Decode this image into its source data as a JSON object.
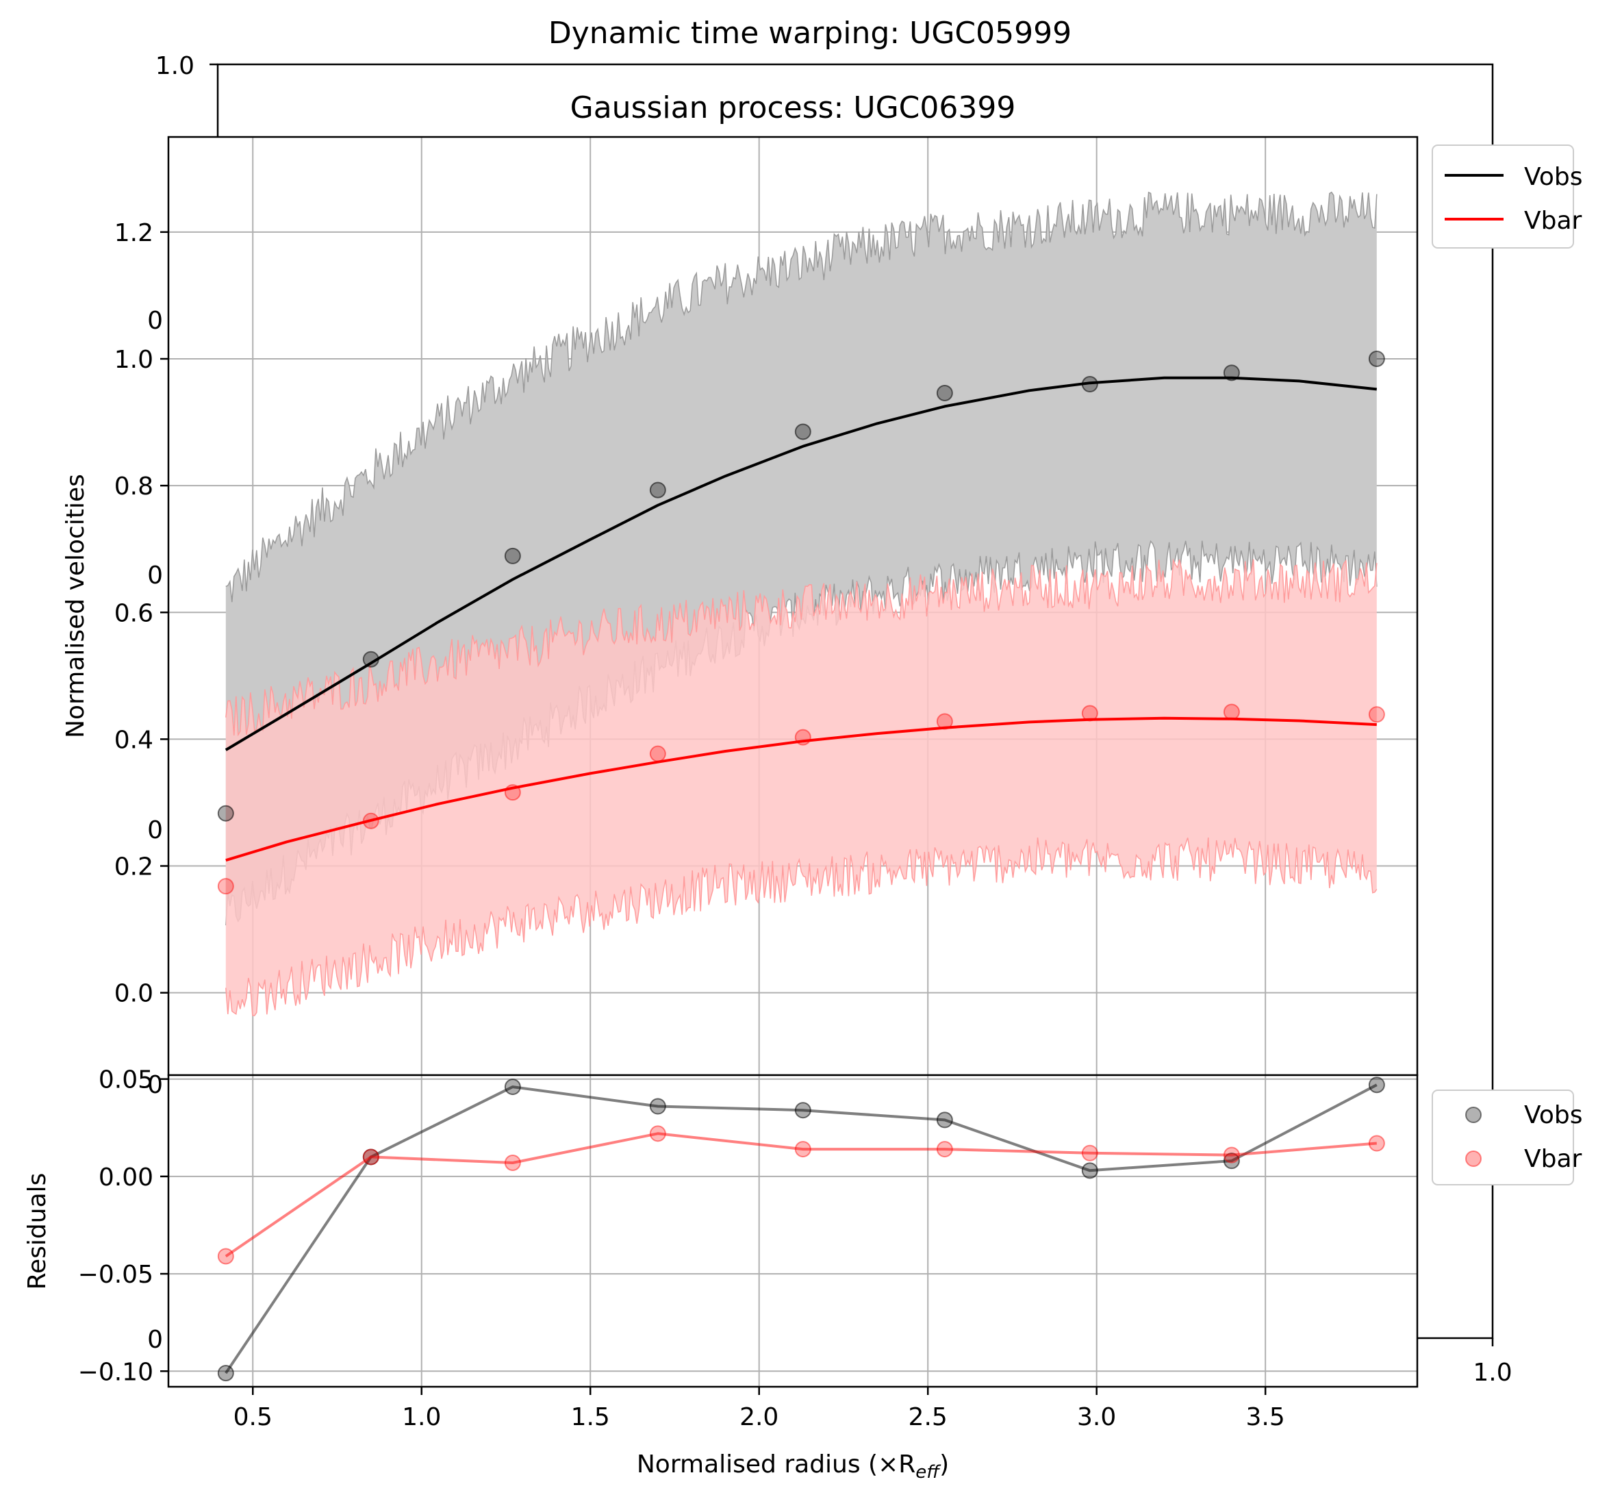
{
  "colors": {
    "vobs": "#000000",
    "vbar": "#ff0000",
    "vobs_band": "#c9c9c9",
    "vbar_band": "#ffc6c6",
    "grid": "#b0b0b0"
  },
  "background_axes": {
    "title": "Dynamic time warping: UGC05999",
    "tick_top_left": "1.0",
    "tick_bottom_right": "1.0",
    "peek_labels": [
      "0",
      "0",
      "0",
      "0",
      "0"
    ]
  },
  "chart_data": [
    {
      "type": "line",
      "title": "Gaussian process: UGC06399",
      "xlabel": "Normalised radius (×R",
      "xlabel_sub": "eff",
      "xlabel_close": ")",
      "ylabel": "Normalised velocities",
      "xlim": [
        0.25,
        3.95
      ],
      "ylim": [
        -0.13,
        1.35
      ],
      "yticks": [
        0.0,
        0.2,
        0.4,
        0.6,
        0.8,
        1.0,
        1.2
      ],
      "ytick_labels": [
        "0.0",
        "0.2",
        "0.4",
        "0.6",
        "0.8",
        "1.0",
        "1.2"
      ],
      "xticks": [
        0.5,
        1.0,
        1.5,
        2.0,
        2.5,
        3.0,
        3.5
      ],
      "grid": true,
      "legend": {
        "placement": "outside-right-top",
        "entries": [
          "Vobs",
          "Vbar"
        ]
      },
      "x": [
        0.42,
        0.85,
        1.27,
        1.7,
        2.13,
        2.55,
        2.98,
        3.4,
        3.83
      ],
      "series": [
        {
          "name": "Vobs",
          "points": [
            0.283,
            0.526,
            0.689,
            0.793,
            0.885,
            0.946,
            0.96,
            0.978,
            1.0
          ],
          "fit_x": [
            0.42,
            0.6,
            0.85,
            1.05,
            1.27,
            1.5,
            1.7,
            1.9,
            2.13,
            2.35,
            2.55,
            2.8,
            2.98,
            3.2,
            3.4,
            3.6,
            3.83
          ],
          "fit_y": [
            0.383,
            0.44,
            0.52,
            0.585,
            0.652,
            0.715,
            0.769,
            0.815,
            0.862,
            0.898,
            0.925,
            0.95,
            0.962,
            0.97,
            0.97,
            0.965,
            0.952
          ],
          "band_upper": [
            0.63,
            0.72,
            0.82,
            0.9,
            0.97,
            1.03,
            1.08,
            1.12,
            1.15,
            1.18,
            1.2,
            1.21,
            1.22,
            1.23,
            1.23,
            1.23,
            1.23
          ],
          "band_lower": [
            0.12,
            0.19,
            0.27,
            0.33,
            0.39,
            0.46,
            0.51,
            0.56,
            0.6,
            0.63,
            0.65,
            0.67,
            0.68,
            0.68,
            0.68,
            0.68,
            0.67
          ]
        },
        {
          "name": "Vbar",
          "points": [
            0.168,
            0.271,
            0.316,
            0.377,
            0.403,
            0.428,
            0.441,
            0.443,
            0.439
          ],
          "fit_x": [
            0.42,
            0.6,
            0.85,
            1.05,
            1.27,
            1.5,
            1.7,
            1.9,
            2.13,
            2.35,
            2.55,
            2.8,
            2.98,
            3.2,
            3.4,
            3.6,
            3.83
          ],
          "fit_y": [
            0.209,
            0.238,
            0.272,
            0.298,
            0.323,
            0.346,
            0.364,
            0.381,
            0.397,
            0.409,
            0.418,
            0.427,
            0.431,
            0.433,
            0.432,
            0.429,
            0.423
          ],
          "band_upper": [
            0.43,
            0.46,
            0.49,
            0.52,
            0.54,
            0.57,
            0.58,
            0.6,
            0.61,
            0.62,
            0.63,
            0.64,
            0.64,
            0.65,
            0.65,
            0.65,
            0.65
          ],
          "band_lower": [
            -0.02,
            0.01,
            0.05,
            0.08,
            0.11,
            0.13,
            0.15,
            0.17,
            0.18,
            0.19,
            0.2,
            0.21,
            0.21,
            0.21,
            0.21,
            0.2,
            0.19
          ]
        }
      ]
    },
    {
      "type": "line",
      "ylabel": "Residuals",
      "xlim": [
        0.25,
        3.95
      ],
      "ylim": [
        -0.108,
        0.052
      ],
      "yticks": [
        0.05,
        0.0,
        -0.05,
        -0.1
      ],
      "ytick_labels": [
        "0.05",
        "0.00",
        "−0.05",
        "−0.10"
      ],
      "xticks": [
        0.5,
        1.0,
        1.5,
        2.0,
        2.5,
        3.0,
        3.5
      ],
      "xtick_labels": [
        "0.5",
        "1.0",
        "1.5",
        "2.0",
        "2.5",
        "3.0",
        "3.5"
      ],
      "grid": true,
      "legend": {
        "placement": "outside-right-top",
        "entries": [
          "Vobs",
          "Vbar"
        ]
      },
      "x": [
        0.42,
        0.85,
        1.27,
        1.7,
        2.13,
        2.55,
        2.98,
        3.4,
        3.83
      ],
      "series": [
        {
          "name": "Vobs",
          "values": [
            -0.101,
            0.01,
            0.046,
            0.036,
            0.034,
            0.029,
            0.003,
            0.008,
            0.047
          ]
        },
        {
          "name": "Vbar",
          "values": [
            -0.041,
            0.01,
            0.007,
            0.022,
            0.014,
            0.014,
            0.012,
            0.011,
            0.017
          ]
        }
      ]
    }
  ]
}
